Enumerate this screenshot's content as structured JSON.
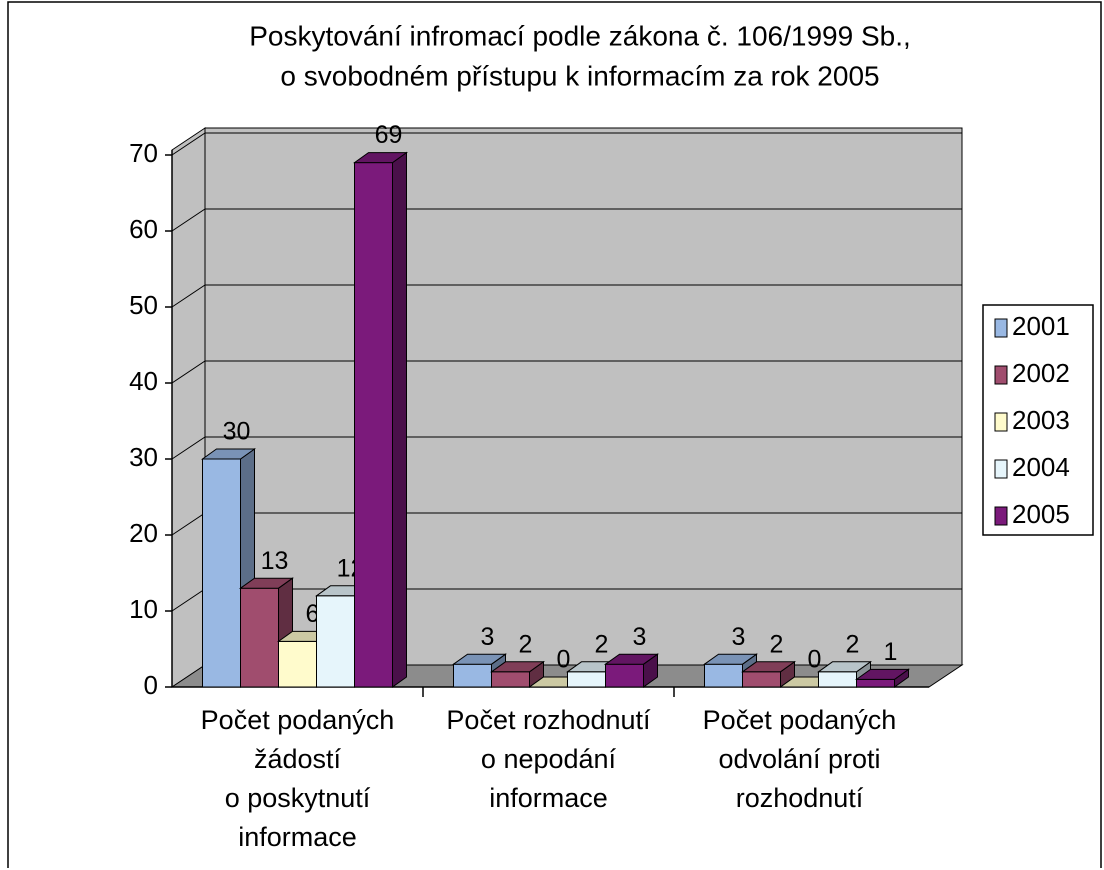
{
  "chart_data": {
    "type": "bar3d",
    "title": [
      "Poskytování infromací podle zákona č. 106/1999 Sb.,",
      "o svobodném přístupu k informacím za rok 2005"
    ],
    "categories": [
      "Počet podaných\nžádostí\no poskytnutí\ninformace",
      "Počet rozhodnutí\no nepodání\ninformace",
      "Počet podaných\nodvolání proti\nrozhodnutí"
    ],
    "series": [
      {
        "name": "2001",
        "color": "#99b8e3",
        "values": [
          30,
          3,
          3
        ]
      },
      {
        "name": "2002",
        "color": "#a04d6e",
        "values": [
          13,
          2,
          2
        ]
      },
      {
        "name": "2003",
        "color": "#fffbcc",
        "values": [
          6,
          0,
          0
        ]
      },
      {
        "name": "2004",
        "color": "#e6f5fb",
        "values": [
          12,
          2,
          2
        ]
      },
      {
        "name": "2005",
        "color": "#7b1a7b",
        "values": [
          69,
          3,
          1
        ]
      }
    ],
    "ylim": [
      0,
      70
    ],
    "yticks": [
      0,
      10,
      20,
      30,
      40,
      50,
      60,
      70
    ],
    "grid": true,
    "legend": "right"
  }
}
